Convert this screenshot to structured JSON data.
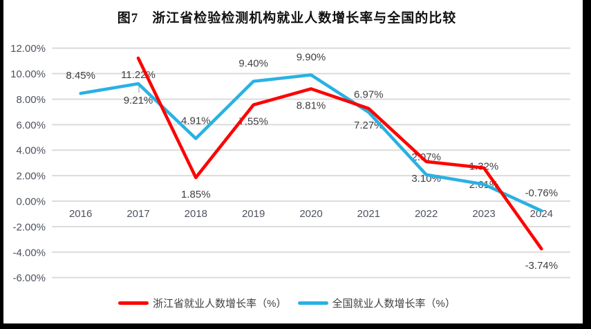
{
  "title": "图7　浙江省检验检测机构就业人数增长率与全国的比较",
  "chart_data": {
    "type": "line",
    "categories": [
      "2016",
      "2017",
      "2018",
      "2019",
      "2020",
      "2021",
      "2022",
      "2023",
      "2024"
    ],
    "series": [
      {
        "name": "浙江省就业人数增长率（%）",
        "color": "#FE0000",
        "values": [
          null,
          11.22,
          1.85,
          7.55,
          8.81,
          7.27,
          3.1,
          2.61,
          -3.74
        ],
        "data_labels": [
          null,
          "11.22%",
          "1.85%",
          "7.55%",
          "8.81%",
          "7.27%",
          "3.10%",
          "2.61%",
          "-3.74%"
        ],
        "label_sides": [
          null,
          "below",
          "below",
          "below",
          "below",
          "below",
          "below",
          "below",
          "below"
        ]
      },
      {
        "name": "全国就业人数增长率（%）",
        "color": "#29B1E3",
        "values": [
          8.45,
          9.21,
          4.91,
          9.4,
          9.9,
          6.97,
          2.07,
          1.32,
          -0.76
        ],
        "data_labels": [
          "8.45%",
          "9.21%",
          "4.91%",
          "9.40%",
          "9.90%",
          "6.97%",
          "2.07%",
          "1.32%",
          "-0.76%"
        ],
        "label_sides": [
          "above",
          "below",
          "above",
          "above",
          "above",
          "above",
          "above",
          "above",
          "above"
        ]
      }
    ],
    "y_axis": {
      "ticks": [
        "12.00%",
        "10.00%",
        "8.00%",
        "6.00%",
        "4.00%",
        "2.00%",
        "0.00%",
        "-2.00%",
        "-4.00%",
        "-6.00%"
      ],
      "values": [
        12,
        10,
        8,
        6,
        4,
        2,
        0,
        -2,
        -4,
        -6
      ],
      "min": -6,
      "max": 12
    },
    "grid": true,
    "legend_position": "bottom",
    "colors": {
      "gridline": "#DBDBDB",
      "axis_text": "#4D525E",
      "data_label_text": "#3E3E42"
    }
  }
}
